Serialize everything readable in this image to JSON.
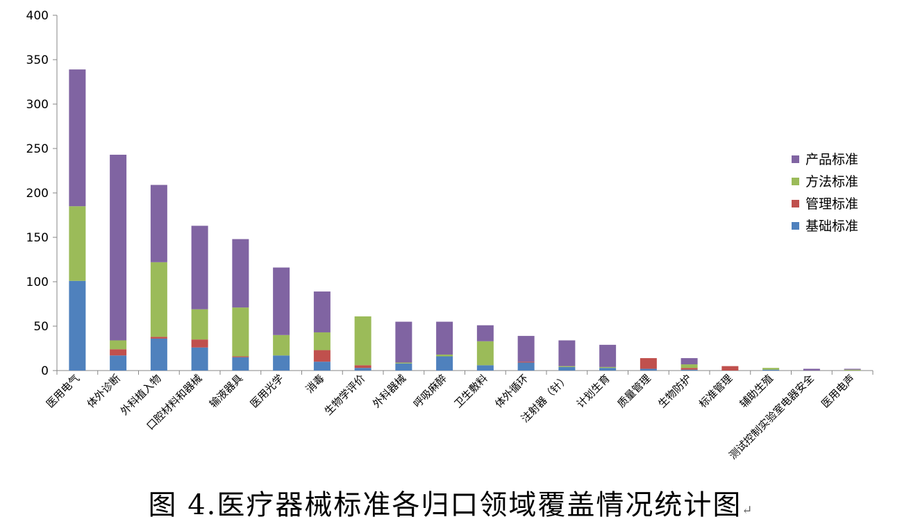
{
  "chart_data": {
    "type": "bar",
    "stacked": true,
    "title": "",
    "xlabel": "",
    "ylabel": "",
    "ylim": [
      0,
      400
    ],
    "yticks": [
      0,
      50,
      100,
      150,
      200,
      250,
      300,
      350,
      400
    ],
    "grid": false,
    "legend_position": "right",
    "categories": [
      "医用电气",
      "体外诊断",
      "外科植入物",
      "口腔材料和器械",
      "输液器具",
      "医用光学",
      "消毒",
      "生物学评价",
      "外科器械",
      "呼吸麻醉",
      "卫生敷料",
      "体外循环",
      "注射器（针）",
      "计划生育",
      "质量管理",
      "生物防护",
      "标准管理",
      "辅助生殖",
      "测试控制实验室电器安全",
      "医用电声"
    ],
    "series": [
      {
        "name": "基础标准",
        "color": "#4f81bd",
        "values": [
          101,
          17,
          36,
          26,
          15,
          17,
          10,
          3,
          8,
          16,
          6,
          9,
          4,
          3,
          2,
          1,
          0,
          1,
          0,
          0
        ]
      },
      {
        "name": "管理标准",
        "color": "#c0504d",
        "values": [
          0,
          7,
          2,
          9,
          1,
          0,
          13,
          3,
          0,
          0,
          0,
          1,
          0,
          0,
          12,
          2,
          5,
          0,
          0,
          0
        ]
      },
      {
        "name": "方法标准",
        "color": "#9bbb59",
        "values": [
          84,
          10,
          84,
          34,
          55,
          23,
          20,
          55,
          1,
          2,
          27,
          0,
          1,
          1,
          0,
          4,
          0,
          2,
          0,
          1
        ]
      },
      {
        "name": "产品标准",
        "color": "#8064a2",
        "values": [
          154,
          209,
          87,
          94,
          77,
          76,
          46,
          0,
          46,
          37,
          18,
          29,
          29,
          25,
          0,
          7,
          0,
          0,
          2,
          1
        ]
      }
    ]
  },
  "caption": "图 4.医疗器械标准各归口领域覆盖情况统计图",
  "caption_mark": "↵"
}
